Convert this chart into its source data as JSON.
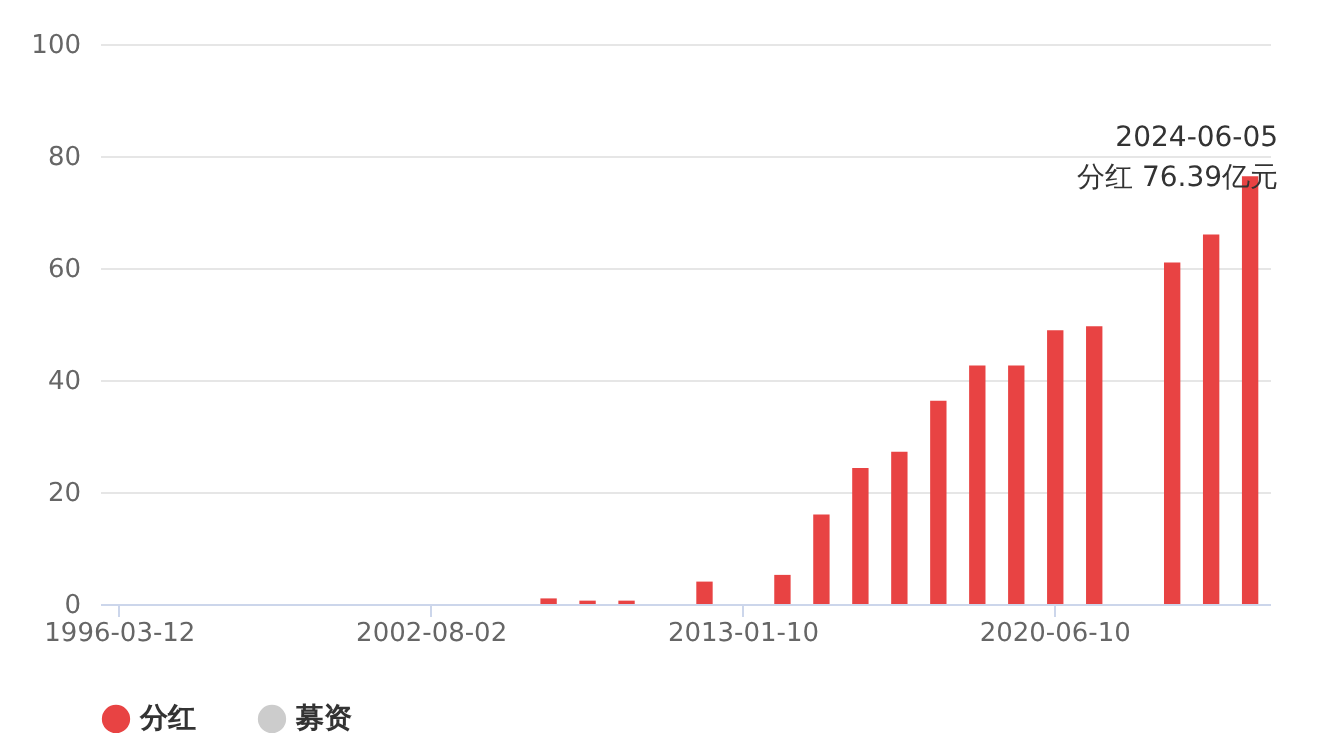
{
  "chart_data": {
    "type": "bar",
    "categories": [
      "1996-03-12",
      null,
      null,
      null,
      null,
      null,
      null,
      null,
      "2002-08-02",
      null,
      null,
      null,
      null,
      null,
      null,
      null,
      "2013-01-10",
      null,
      null,
      null,
      null,
      null,
      null,
      null,
      "2020-06-10",
      null,
      null,
      null,
      null,
      null
    ],
    "series": [
      {
        "name": "分红",
        "color": "#e84343",
        "values": [
          null,
          null,
          null,
          null,
          null,
          null,
          null,
          null,
          null,
          null,
          null,
          1.0,
          0.6,
          0.6,
          null,
          4.0,
          null,
          5.2,
          16.0,
          24.3,
          27.2,
          36.3,
          42.6,
          42.6,
          48.9,
          49.6,
          null,
          61.0,
          66.0,
          76.39
        ]
      },
      {
        "name": "募资",
        "color": "#cccccc",
        "values": [
          null,
          null,
          null,
          null,
          null,
          null,
          null,
          null,
          null,
          null,
          null,
          null,
          null,
          null,
          null,
          null,
          null,
          null,
          null,
          null,
          null,
          null,
          null,
          null,
          null,
          null,
          null,
          null,
          null,
          null
        ]
      }
    ],
    "ylim": [
      0,
      100
    ],
    "yticks": [
      0,
      20,
      40,
      60,
      80,
      100
    ],
    "grid": "y",
    "legend": "bottom",
    "annotations": [
      "2024-06-05",
      "分红 76.39亿元"
    ]
  }
}
